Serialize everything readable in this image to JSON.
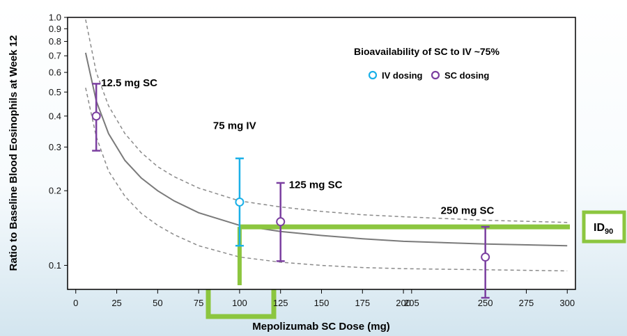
{
  "chart_data": {
    "type": "scatter",
    "title": "",
    "xlabel": "Mepolizumab SC Dose (mg)",
    "ylabel": "Ratio to Baseline Blood Eosinophils at Week 12",
    "xlim": [
      -5,
      305
    ],
    "ylim": [
      0.08,
      1.0
    ],
    "y_scale": "log",
    "grid": false,
    "x_ticks": [
      0,
      25,
      50,
      75,
      100,
      125,
      150,
      175,
      200,
      205,
      250,
      275,
      300
    ],
    "y_ticks": [
      {
        "value": 1.0,
        "label": "1.0"
      },
      {
        "value": 0.9,
        "label": "0.9"
      },
      {
        "value": 0.8,
        "label": "0.8"
      },
      {
        "value": 0.7,
        "label": "0.7"
      },
      {
        "value": 0.6,
        "label": "0.6"
      },
      {
        "value": 0.5,
        "label": "0.5"
      },
      {
        "value": 0.4,
        "label": "0.4"
      },
      {
        "value": 0.3,
        "label": "0.3"
      },
      {
        "value": 0.2,
        "label": "0.2"
      },
      {
        "value": 0.1,
        "label": "0.1"
      }
    ],
    "legend_position": "top-right",
    "legend_title": "Bioavailability of SC to IV  ~75%",
    "series": [
      {
        "name": "IV dosing",
        "color": "#1ab0e8",
        "points": [
          {
            "x": 100,
            "y": 0.18,
            "low": 0.12,
            "high": 0.27,
            "label": "75 mg IV"
          }
        ]
      },
      {
        "name": "SC dosing",
        "color": "#7b3fa0",
        "points": [
          {
            "x": 12.5,
            "y": 0.4,
            "low": 0.29,
            "high": 0.54,
            "label": "12.5 mg SC"
          },
          {
            "x": 125,
            "y": 0.15,
            "low": 0.104,
            "high": 0.215,
            "label": "125 mg SC"
          },
          {
            "x": 250,
            "y": 0.108,
            "low": 0.074,
            "high": 0.143,
            "label": "250 mg SC"
          }
        ]
      }
    ],
    "model_curve": {
      "x": [
        6,
        12.5,
        20,
        30,
        40,
        50,
        60,
        75,
        100,
        125,
        150,
        175,
        200,
        250,
        300
      ],
      "y": [
        0.72,
        0.46,
        0.34,
        0.265,
        0.225,
        0.2,
        0.182,
        0.163,
        0.145,
        0.137,
        0.132,
        0.128,
        0.125,
        0.122,
        0.12
      ],
      "upper": [
        0.98,
        0.6,
        0.44,
        0.34,
        0.285,
        0.25,
        0.228,
        0.205,
        0.182,
        0.172,
        0.165,
        0.16,
        0.157,
        0.152,
        0.149
      ],
      "lower": [
        0.52,
        0.33,
        0.24,
        0.19,
        0.162,
        0.145,
        0.133,
        0.12,
        0.108,
        0.103,
        0.1,
        0.098,
        0.097,
        0.096,
        0.095
      ]
    },
    "id90": {
      "label_main": "ID",
      "label_sub": "90",
      "y": 0.143,
      "x_start": 100
    },
    "highlight_color": "#8cc63f"
  }
}
